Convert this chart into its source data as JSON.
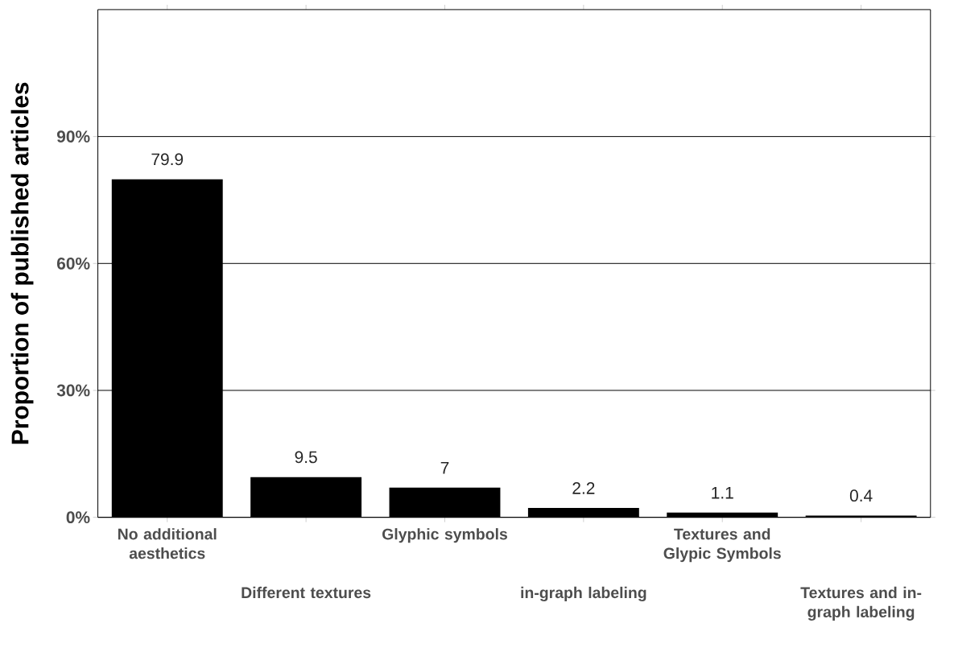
{
  "chart_data": {
    "type": "bar",
    "ylabel": "Proportion of published articles",
    "categories": [
      "No additional aesthetics",
      "Different textures",
      "Glyphic symbols",
      "in-graph labeling",
      "Textures and Glypic Symbols",
      "Textures and in-graph labeling"
    ],
    "values": [
      79.9,
      9.5,
      7,
      2.2,
      1.1,
      0.4
    ],
    "color": "#000000",
    "ylim": [
      0,
      120
    ],
    "yticks": [
      {
        "value": 0,
        "label": "0%"
      },
      {
        "value": 30,
        "label": "30%"
      },
      {
        "value": 60,
        "label": "60%"
      },
      {
        "value": 90,
        "label": "90%"
      }
    ],
    "grid": "y",
    "data_labels": true
  }
}
